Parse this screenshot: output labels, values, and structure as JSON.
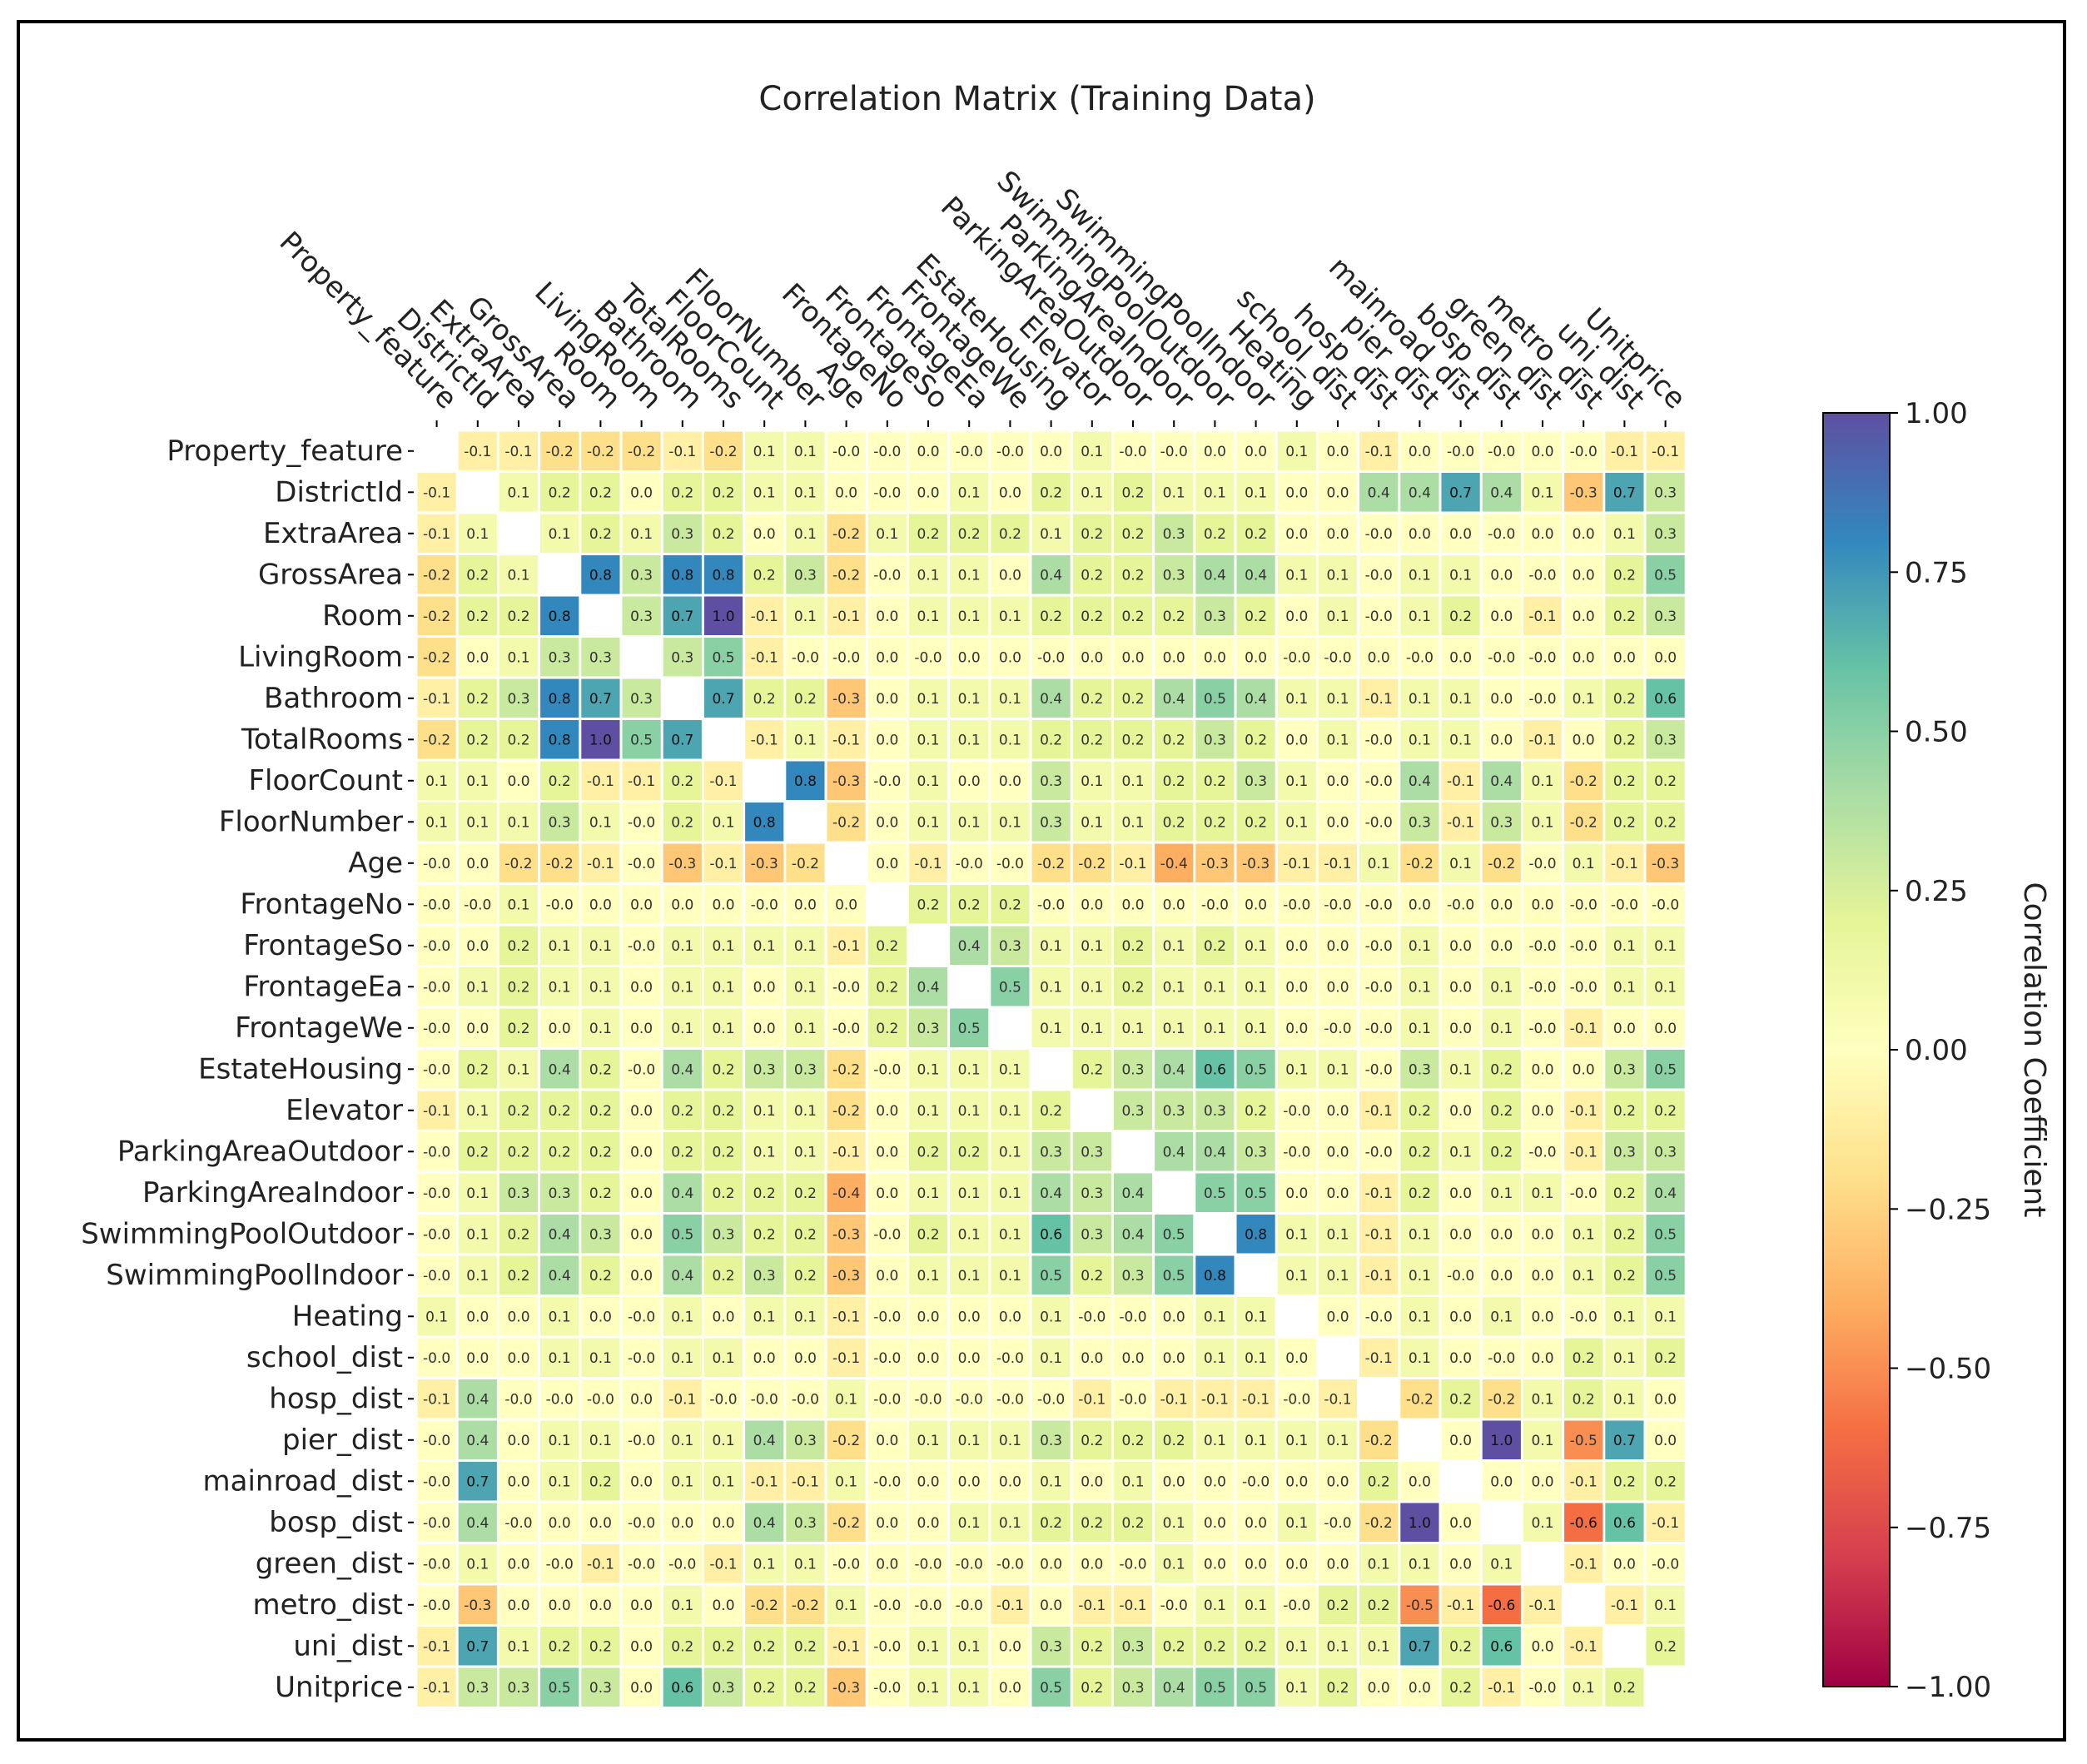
{
  "chart_data": {
    "type": "heatmap",
    "title": "Correlation Matrix (Training Data)",
    "xlabel": "",
    "ylabel": "",
    "colormap": "Spectral",
    "vmin": -1.0,
    "vmax": 1.0,
    "mask_diagonal": true,
    "labels": [
      "Property_feature",
      "DistrictId",
      "ExtraArea",
      "GrossArea",
      "Room",
      "LivingRoom",
      "Bathroom",
      "TotalRooms",
      "FloorCount",
      "FloorNumber",
      "Age",
      "FrontageNo",
      "FrontageSo",
      "FrontageEa",
      "FrontageWe",
      "EstateHousing",
      "Elevator",
      "ParkingAreaOutdoor",
      "ParkingAreaIndoor",
      "SwimmingPoolOutdoor",
      "SwimmingPoolIndoor",
      "Heating",
      "school_dist",
      "hosp_dist",
      "pier_dist",
      "mainroad_dist",
      "bosp_dist",
      "green_dist",
      "metro_dist",
      "uni_dist",
      "Unitprice"
    ],
    "values": [
      [
        null,
        -0.1,
        -0.1,
        -0.2,
        -0.2,
        -0.2,
        -0.1,
        -0.2,
        0.1,
        0.1,
        -0.0,
        -0.0,
        0.0,
        -0.0,
        -0.0,
        0.0,
        0.1,
        -0.0,
        -0.0,
        0.0,
        0.0,
        0.1,
        0.0,
        -0.1,
        0.0,
        -0.0,
        -0.0,
        0.0,
        -0.0,
        -0.1,
        -0.1
      ],
      [
        -0.1,
        null,
        0.1,
        0.2,
        0.2,
        0.0,
        0.2,
        0.2,
        0.1,
        0.1,
        0.0,
        -0.0,
        0.0,
        0.1,
        0.0,
        0.2,
        0.1,
        0.2,
        0.1,
        0.1,
        0.1,
        0.0,
        0.0,
        0.4,
        0.4,
        0.7,
        0.4,
        0.1,
        -0.3,
        0.7,
        0.3
      ],
      [
        -0.1,
        0.1,
        null,
        0.1,
        0.2,
        0.1,
        0.3,
        0.2,
        0.0,
        0.1,
        -0.2,
        0.1,
        0.2,
        0.2,
        0.2,
        0.1,
        0.2,
        0.2,
        0.3,
        0.2,
        0.2,
        0.0,
        0.0,
        -0.0,
        0.0,
        0.0,
        -0.0,
        0.0,
        0.0,
        0.1,
        0.3
      ],
      [
        -0.2,
        0.2,
        0.1,
        null,
        0.8,
        0.3,
        0.8,
        0.8,
        0.2,
        0.3,
        -0.2,
        -0.0,
        0.1,
        0.1,
        0.0,
        0.4,
        0.2,
        0.2,
        0.3,
        0.4,
        0.4,
        0.1,
        0.1,
        -0.0,
        0.1,
        0.1,
        0.0,
        -0.0,
        0.0,
        0.2,
        0.5
      ],
      [
        -0.2,
        0.2,
        0.2,
        0.8,
        null,
        0.3,
        0.7,
        1.0,
        -0.1,
        0.1,
        -0.1,
        0.0,
        0.1,
        0.1,
        0.1,
        0.2,
        0.2,
        0.2,
        0.2,
        0.3,
        0.2,
        0.0,
        0.1,
        -0.0,
        0.1,
        0.2,
        0.0,
        -0.1,
        0.0,
        0.2,
        0.3
      ],
      [
        -0.2,
        0.0,
        0.1,
        0.3,
        0.3,
        null,
        0.3,
        0.5,
        -0.1,
        -0.0,
        -0.0,
        0.0,
        -0.0,
        0.0,
        0.0,
        -0.0,
        0.0,
        0.0,
        0.0,
        0.0,
        0.0,
        -0.0,
        -0.0,
        0.0,
        -0.0,
        0.0,
        -0.0,
        -0.0,
        0.0,
        0.0,
        0.0
      ],
      [
        -0.1,
        0.2,
        0.3,
        0.8,
        0.7,
        0.3,
        null,
        0.7,
        0.2,
        0.2,
        -0.3,
        0.0,
        0.1,
        0.1,
        0.1,
        0.4,
        0.2,
        0.2,
        0.4,
        0.5,
        0.4,
        0.1,
        0.1,
        -0.1,
        0.1,
        0.1,
        0.0,
        -0.0,
        0.1,
        0.2,
        0.6
      ],
      [
        -0.2,
        0.2,
        0.2,
        0.8,
        1.0,
        0.5,
        0.7,
        null,
        -0.1,
        0.1,
        -0.1,
        0.0,
        0.1,
        0.1,
        0.1,
        0.2,
        0.2,
        0.2,
        0.2,
        0.3,
        0.2,
        0.0,
        0.1,
        -0.0,
        0.1,
        0.1,
        0.0,
        -0.1,
        0.0,
        0.2,
        0.3
      ],
      [
        0.1,
        0.1,
        0.0,
        0.2,
        -0.1,
        -0.1,
        0.2,
        -0.1,
        null,
        0.8,
        -0.3,
        -0.0,
        0.1,
        0.0,
        0.0,
        0.3,
        0.1,
        0.1,
        0.2,
        0.2,
        0.3,
        0.1,
        0.0,
        -0.0,
        0.4,
        -0.1,
        0.4,
        0.1,
        -0.2,
        0.2,
        0.2
      ],
      [
        0.1,
        0.1,
        0.1,
        0.3,
        0.1,
        -0.0,
        0.2,
        0.1,
        0.8,
        null,
        -0.2,
        0.0,
        0.1,
        0.1,
        0.1,
        0.3,
        0.1,
        0.1,
        0.2,
        0.2,
        0.2,
        0.1,
        0.0,
        -0.0,
        0.3,
        -0.1,
        0.3,
        0.1,
        -0.2,
        0.2,
        0.2
      ],
      [
        -0.0,
        0.0,
        -0.2,
        -0.2,
        -0.1,
        -0.0,
        -0.3,
        -0.1,
        -0.3,
        -0.2,
        null,
        0.0,
        -0.1,
        -0.0,
        -0.0,
        -0.2,
        -0.2,
        -0.1,
        -0.4,
        -0.3,
        -0.3,
        -0.1,
        -0.1,
        0.1,
        -0.2,
        0.1,
        -0.2,
        -0.0,
        0.1,
        -0.1,
        -0.3
      ],
      [
        -0.0,
        -0.0,
        0.1,
        -0.0,
        0.0,
        0.0,
        0.0,
        0.0,
        -0.0,
        0.0,
        0.0,
        null,
        0.2,
        0.2,
        0.2,
        -0.0,
        0.0,
        0.0,
        0.0,
        -0.0,
        0.0,
        -0.0,
        -0.0,
        -0.0,
        0.0,
        -0.0,
        0.0,
        0.0,
        -0.0,
        -0.0,
        -0.0
      ],
      [
        -0.0,
        0.0,
        0.2,
        0.1,
        0.1,
        -0.0,
        0.1,
        0.1,
        0.1,
        0.1,
        -0.1,
        0.2,
        null,
        0.4,
        0.3,
        0.1,
        0.1,
        0.2,
        0.1,
        0.2,
        0.1,
        0.0,
        0.0,
        -0.0,
        0.1,
        0.0,
        0.0,
        -0.0,
        -0.0,
        0.1,
        0.1
      ],
      [
        -0.0,
        0.1,
        0.2,
        0.1,
        0.1,
        0.0,
        0.1,
        0.1,
        0.0,
        0.1,
        -0.0,
        0.2,
        0.4,
        null,
        0.5,
        0.1,
        0.1,
        0.2,
        0.1,
        0.1,
        0.1,
        0.0,
        0.0,
        -0.0,
        0.1,
        0.0,
        0.1,
        -0.0,
        -0.0,
        0.1,
        0.1
      ],
      [
        -0.0,
        0.0,
        0.2,
        0.0,
        0.1,
        0.0,
        0.1,
        0.1,
        0.0,
        0.1,
        -0.0,
        0.2,
        0.3,
        0.5,
        null,
        0.1,
        0.1,
        0.1,
        0.1,
        0.1,
        0.1,
        0.0,
        -0.0,
        -0.0,
        0.1,
        0.0,
        0.1,
        -0.0,
        -0.1,
        0.0,
        0.0
      ],
      [
        -0.0,
        0.2,
        0.1,
        0.4,
        0.2,
        -0.0,
        0.4,
        0.2,
        0.3,
        0.3,
        -0.2,
        -0.0,
        0.1,
        0.1,
        0.1,
        null,
        0.2,
        0.3,
        0.4,
        0.6,
        0.5,
        0.1,
        0.1,
        -0.0,
        0.3,
        0.1,
        0.2,
        0.0,
        0.0,
        0.3,
        0.5
      ],
      [
        -0.1,
        0.1,
        0.2,
        0.2,
        0.2,
        0.0,
        0.2,
        0.2,
        0.1,
        0.1,
        -0.2,
        0.0,
        0.1,
        0.1,
        0.1,
        0.2,
        null,
        0.3,
        0.3,
        0.3,
        0.2,
        -0.0,
        0.0,
        -0.1,
        0.2,
        0.0,
        0.2,
        0.0,
        -0.1,
        0.2,
        0.2
      ],
      [
        -0.0,
        0.2,
        0.2,
        0.2,
        0.2,
        0.0,
        0.2,
        0.2,
        0.1,
        0.1,
        -0.1,
        0.0,
        0.2,
        0.2,
        0.1,
        0.3,
        0.3,
        null,
        0.4,
        0.4,
        0.3,
        -0.0,
        0.0,
        -0.0,
        0.2,
        0.1,
        0.2,
        -0.0,
        -0.1,
        0.3,
        0.3
      ],
      [
        -0.0,
        0.1,
        0.3,
        0.3,
        0.2,
        0.0,
        0.4,
        0.2,
        0.2,
        0.2,
        -0.4,
        0.0,
        0.1,
        0.1,
        0.1,
        0.4,
        0.3,
        0.4,
        null,
        0.5,
        0.5,
        0.0,
        0.0,
        -0.1,
        0.2,
        0.0,
        0.1,
        0.1,
        -0.0,
        0.2,
        0.4
      ],
      [
        -0.0,
        0.1,
        0.2,
        0.4,
        0.3,
        0.0,
        0.5,
        0.3,
        0.2,
        0.2,
        -0.3,
        -0.0,
        0.2,
        0.1,
        0.1,
        0.6,
        0.3,
        0.4,
        0.5,
        null,
        0.8,
        0.1,
        0.1,
        -0.1,
        0.1,
        0.0,
        0.0,
        0.0,
        0.1,
        0.2,
        0.5
      ],
      [
        -0.0,
        0.1,
        0.2,
        0.4,
        0.2,
        0.0,
        0.4,
        0.2,
        0.3,
        0.2,
        -0.3,
        0.0,
        0.1,
        0.1,
        0.1,
        0.5,
        0.2,
        0.3,
        0.5,
        0.8,
        null,
        0.1,
        0.1,
        -0.1,
        0.1,
        -0.0,
        0.0,
        0.0,
        0.1,
        0.2,
        0.5
      ],
      [
        0.1,
        0.0,
        0.0,
        0.1,
        0.0,
        -0.0,
        0.1,
        0.0,
        0.1,
        0.1,
        -0.1,
        -0.0,
        0.0,
        0.0,
        0.0,
        0.1,
        -0.0,
        -0.0,
        0.0,
        0.1,
        0.1,
        null,
        0.0,
        -0.0,
        0.1,
        0.0,
        0.1,
        0.0,
        -0.0,
        0.1,
        0.1
      ],
      [
        -0.0,
        0.0,
        0.0,
        0.1,
        0.1,
        -0.0,
        0.1,
        0.1,
        0.0,
        0.0,
        -0.1,
        -0.0,
        0.0,
        0.0,
        -0.0,
        0.1,
        0.0,
        0.0,
        0.0,
        0.1,
        0.1,
        0.0,
        null,
        -0.1,
        0.1,
        0.0,
        -0.0,
        0.0,
        0.2,
        0.1,
        0.2
      ],
      [
        -0.1,
        0.4,
        -0.0,
        -0.0,
        -0.0,
        0.0,
        -0.1,
        -0.0,
        -0.0,
        -0.0,
        0.1,
        -0.0,
        -0.0,
        -0.0,
        -0.0,
        -0.0,
        -0.1,
        -0.0,
        -0.1,
        -0.1,
        -0.1,
        -0.0,
        -0.1,
        null,
        -0.2,
        0.2,
        -0.2,
        0.1,
        0.2,
        0.1,
        0.0
      ],
      [
        -0.0,
        0.4,
        0.0,
        0.1,
        0.1,
        -0.0,
        0.1,
        0.1,
        0.4,
        0.3,
        -0.2,
        0.0,
        0.1,
        0.1,
        0.1,
        0.3,
        0.2,
        0.2,
        0.2,
        0.1,
        0.1,
        0.1,
        0.1,
        -0.2,
        null,
        0.0,
        1.0,
        0.1,
        -0.5,
        0.7,
        0.0
      ],
      [
        -0.0,
        0.7,
        0.0,
        0.1,
        0.2,
        0.0,
        0.1,
        0.1,
        -0.1,
        -0.1,
        0.1,
        -0.0,
        0.0,
        0.0,
        0.0,
        0.1,
        0.0,
        0.1,
        0.0,
        0.0,
        -0.0,
        0.0,
        0.0,
        0.2,
        0.0,
        null,
        0.0,
        0.0,
        -0.1,
        0.2,
        0.2
      ],
      [
        -0.0,
        0.4,
        -0.0,
        0.0,
        0.0,
        -0.0,
        0.0,
        0.0,
        0.4,
        0.3,
        -0.2,
        0.0,
        0.0,
        0.1,
        0.1,
        0.2,
        0.2,
        0.2,
        0.1,
        0.0,
        0.0,
        0.1,
        -0.0,
        -0.2,
        1.0,
        0.0,
        null,
        0.1,
        -0.6,
        0.6,
        -0.1
      ],
      [
        -0.0,
        0.1,
        0.0,
        -0.0,
        -0.1,
        -0.0,
        -0.0,
        -0.1,
        0.1,
        0.1,
        -0.0,
        0.0,
        -0.0,
        -0.0,
        -0.0,
        0.0,
        0.0,
        -0.0,
        0.1,
        0.0,
        0.0,
        0.0,
        0.0,
        0.1,
        0.1,
        0.0,
        0.1,
        null,
        -0.1,
        0.0,
        -0.0
      ],
      [
        -0.0,
        -0.3,
        0.0,
        0.0,
        0.0,
        0.0,
        0.1,
        0.0,
        -0.2,
        -0.2,
        0.1,
        -0.0,
        -0.0,
        -0.0,
        -0.1,
        0.0,
        -0.1,
        -0.1,
        -0.0,
        0.1,
        0.1,
        -0.0,
        0.2,
        0.2,
        -0.5,
        -0.1,
        -0.6,
        -0.1,
        null,
        -0.1,
        0.1
      ],
      [
        -0.1,
        0.7,
        0.1,
        0.2,
        0.2,
        0.0,
        0.2,
        0.2,
        0.2,
        0.2,
        -0.1,
        -0.0,
        0.1,
        0.1,
        0.0,
        0.3,
        0.2,
        0.3,
        0.2,
        0.2,
        0.2,
        0.1,
        0.1,
        0.1,
        0.7,
        0.2,
        0.6,
        0.0,
        -0.1,
        null,
        0.2
      ],
      [
        -0.1,
        0.3,
        0.3,
        0.5,
        0.3,
        0.0,
        0.6,
        0.3,
        0.2,
        0.2,
        -0.3,
        -0.0,
        0.1,
        0.1,
        0.0,
        0.5,
        0.2,
        0.3,
        0.4,
        0.5,
        0.5,
        0.1,
        0.2,
        0.0,
        0.0,
        0.2,
        -0.1,
        -0.0,
        0.1,
        0.2,
        null
      ]
    ],
    "colorbar": {
      "label": "Correlation Coefficient",
      "ticks": [
        "1.00",
        "0.75",
        "0.50",
        "0.25",
        "0.00",
        "−0.25",
        "−0.50",
        "−0.75",
        "−1.00"
      ],
      "tick_values": [
        1.0,
        0.75,
        0.5,
        0.25,
        0.0,
        -0.25,
        -0.5,
        -0.75,
        -1.0
      ]
    }
  }
}
